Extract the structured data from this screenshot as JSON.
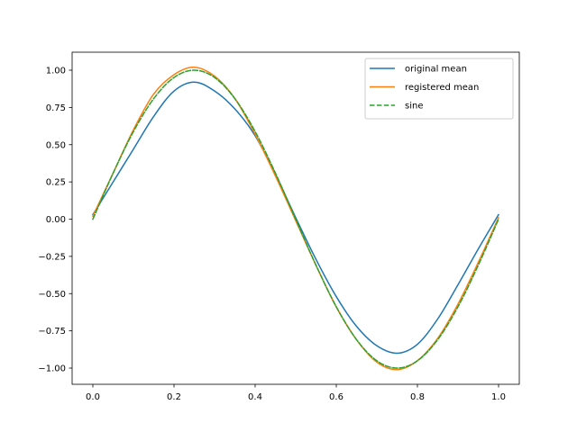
{
  "chart_data": {
    "type": "line",
    "title": "",
    "xlabel": "",
    "ylabel": "",
    "xlim": [
      -0.05,
      1.05
    ],
    "ylim": [
      -1.1,
      1.1
    ],
    "grid": false,
    "legend_position": "upper right",
    "x_ticks": [
      "0.0",
      "0.2",
      "0.4",
      "0.6",
      "0.8",
      "1.0"
    ],
    "y_ticks": [
      "1.00",
      "0.75",
      "0.50",
      "0.25",
      "0.00",
      "−0.25",
      "−0.50",
      "−0.75",
      "−1.00"
    ],
    "x": [
      0.0,
      0.05,
      0.1,
      0.15,
      0.2,
      0.25,
      0.3,
      0.35,
      0.4,
      0.45,
      0.5,
      0.55,
      0.6,
      0.65,
      0.7,
      0.75,
      0.8,
      0.85,
      0.9,
      0.95,
      1.0
    ],
    "series": [
      {
        "name": "original mean",
        "color": "#1f77b4",
        "style": "solid",
        "values": [
          0.03,
          0.25,
          0.47,
          0.69,
          0.86,
          0.92,
          0.86,
          0.74,
          0.56,
          0.3,
          0.01,
          -0.27,
          -0.52,
          -0.72,
          -0.85,
          -0.9,
          -0.84,
          -0.67,
          -0.44,
          -0.2,
          0.03
        ]
      },
      {
        "name": "registered mean",
        "color": "#ff7f0e",
        "style": "solid",
        "values": [
          0.02,
          0.31,
          0.6,
          0.84,
          0.97,
          1.02,
          0.96,
          0.81,
          0.57,
          0.29,
          -0.01,
          -0.31,
          -0.59,
          -0.81,
          -0.96,
          -1.01,
          -0.95,
          -0.8,
          -0.57,
          -0.29,
          0.01
        ]
      },
      {
        "name": "sine",
        "color": "#2ca02c",
        "style": "dashed",
        "values": [
          0.0,
          0.309,
          0.588,
          0.809,
          0.951,
          1.0,
          0.951,
          0.809,
          0.588,
          0.309,
          0.0,
          -0.309,
          -0.588,
          -0.809,
          -0.951,
          -1.0,
          -0.951,
          -0.809,
          -0.588,
          -0.309,
          0.0
        ]
      }
    ]
  }
}
